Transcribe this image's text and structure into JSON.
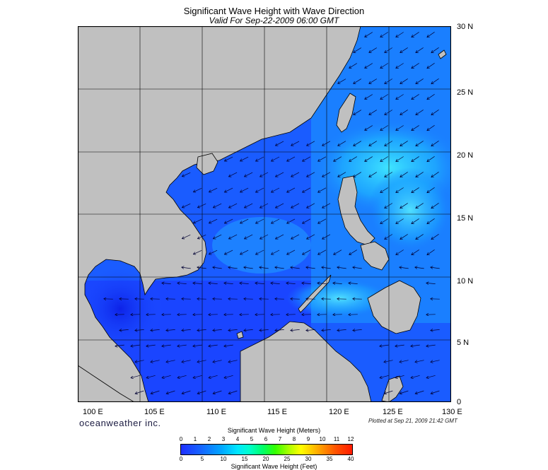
{
  "title": "Significant Wave Height with Wave Direction",
  "subtitle": "Valid For Sep-22-2009 06:00 GMT",
  "lat_labels": [
    "30 N",
    "25 N",
    "20 N",
    "15 N",
    "10 N",
    "5 N",
    "0"
  ],
  "lon_labels": [
    "100 E",
    "105 E",
    "110 E",
    "115 E",
    "120 E",
    "125 E",
    "130 E"
  ],
  "brand": "oceanweather inc.",
  "plotted": "Plotted at Sep 21, 2009 21:42 GMT",
  "colorbar": {
    "title_top": "Significant Wave Height (Meters)",
    "title_bottom": "Significant Wave Height (Feet)",
    "meters_ticks": [
      "0",
      "1",
      "2",
      "3",
      "4",
      "5",
      "6",
      "7",
      "8",
      "9",
      "10",
      "11",
      "12"
    ],
    "feet_ticks": [
      "0",
      "5",
      "10",
      "15",
      "20",
      "25",
      "30",
      "35",
      "40"
    ]
  },
  "map": {
    "extent": {
      "lon_min": 100,
      "lon_max": 130,
      "lat_min": 0,
      "lat_max": 30
    },
    "colors": {
      "land": "#c0c0c0",
      "sea_low": "#1f30ff",
      "sea_mid": "#1a7aff",
      "sea_high": "#22c8ff",
      "grid": "#000000",
      "arrow": "#000033"
    }
  }
}
